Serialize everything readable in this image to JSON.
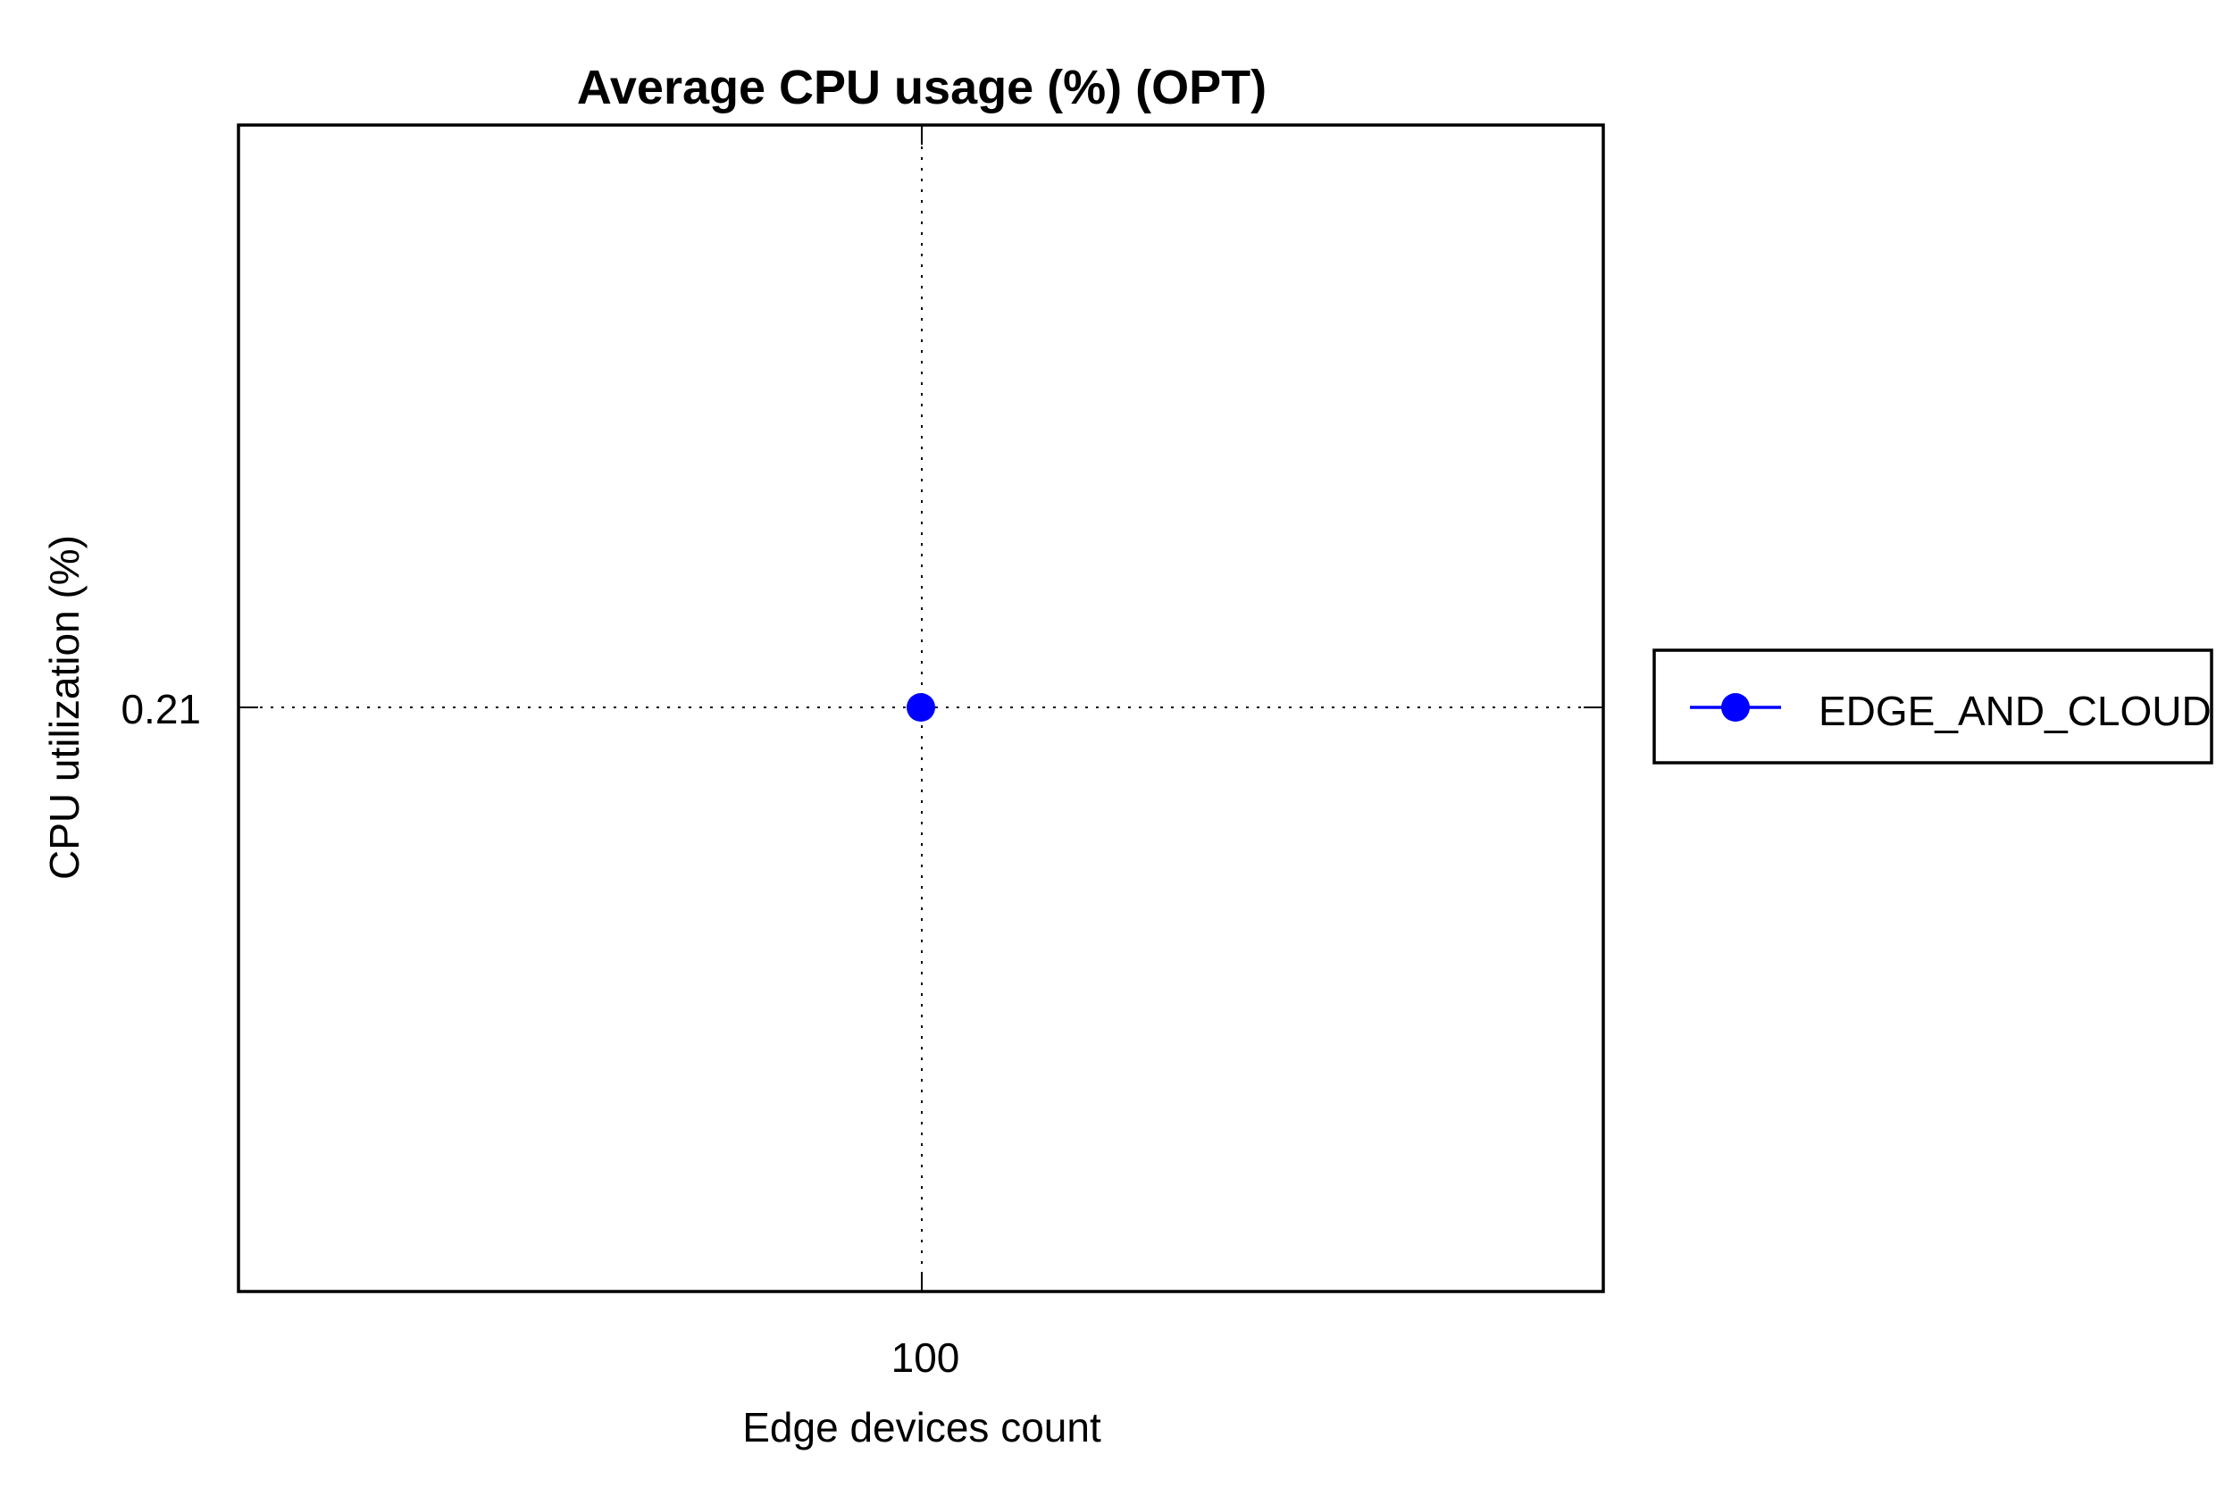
{
  "chart_data": {
    "type": "line",
    "title": "Average CPU usage (%) (OPT)",
    "xlabel": "Edge devices count",
    "ylabel": "CPU utilization (%)",
    "x_ticks": [
      "100"
    ],
    "y_ticks": [
      "0.21"
    ],
    "series": [
      {
        "name": "EDGE_AND_CLOUD",
        "color": "#0000ff",
        "marker": "circle",
        "points": [
          {
            "x": 100,
            "y": 0.21
          }
        ]
      }
    ],
    "grid": true,
    "legend_position": "right"
  }
}
